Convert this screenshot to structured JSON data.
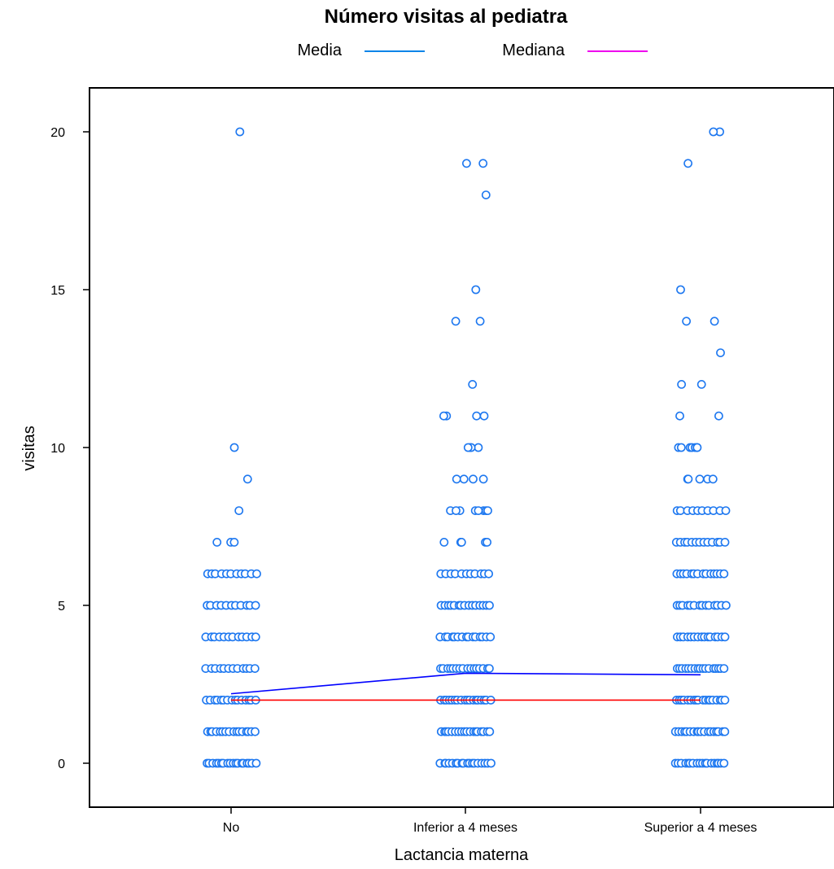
{
  "chart_data": {
    "type": "scatter",
    "title": "Número visitas al pediatra",
    "xlabel": "Lactancia materna",
    "ylabel": "visitas",
    "categories": [
      "No",
      "Inferior a 4 meses",
      "Superior a 4 meses"
    ],
    "ylim": [
      -1.3,
      21.5
    ],
    "yticks": [
      0,
      5,
      10,
      15,
      20
    ],
    "grid": false,
    "legend_position": "top",
    "legend": [
      {
        "label": "Media",
        "color": "#0a84e8"
      },
      {
        "label": "Mediana",
        "color": "#ee00ee"
      }
    ],
    "point_color": "#1e78f0",
    "series": [
      {
        "name": "Media",
        "color": "#0000ff",
        "values": [
          2.2,
          2.85,
          2.8
        ]
      },
      {
        "name": "Mediana",
        "color": "#ff0000",
        "values": [
          2,
          2,
          2
        ]
      }
    ],
    "groups": [
      {
        "category": "No",
        "points": [
          {
            "y": 0,
            "count": 18
          },
          {
            "y": 1,
            "count": 16
          },
          {
            "y": 2,
            "count": 15
          },
          {
            "y": 3,
            "count": 12
          },
          {
            "y": 4,
            "count": 12
          },
          {
            "y": 5,
            "count": 11
          },
          {
            "y": 6,
            "count": 11
          },
          {
            "y": 7,
            "count": 3
          },
          {
            "y": 8,
            "count": 1
          },
          {
            "y": 9,
            "count": 1
          },
          {
            "y": 10,
            "count": 1
          },
          {
            "y": 20,
            "count": 1
          }
        ]
      },
      {
        "category": "Inferior a 4 meses",
        "points": [
          {
            "y": 0,
            "count": 18
          },
          {
            "y": 1,
            "count": 18
          },
          {
            "y": 2,
            "count": 18
          },
          {
            "y": 3,
            "count": 16
          },
          {
            "y": 4,
            "count": 15
          },
          {
            "y": 5,
            "count": 15
          },
          {
            "y": 6,
            "count": 11
          },
          {
            "y": 7,
            "count": 6
          },
          {
            "y": 8,
            "count": 8
          },
          {
            "y": 9,
            "count": 4
          },
          {
            "y": 10,
            "count": 4
          },
          {
            "y": 11,
            "count": 4
          },
          {
            "y": 12,
            "count": 1
          },
          {
            "y": 14,
            "count": 2
          },
          {
            "y": 15,
            "count": 1
          },
          {
            "y": 18,
            "count": 1
          },
          {
            "y": 19,
            "count": 2
          }
        ]
      },
      {
        "category": "Superior a 4 meses",
        "points": [
          {
            "y": 0,
            "count": 18
          },
          {
            "y": 1,
            "count": 18
          },
          {
            "y": 2,
            "count": 18
          },
          {
            "y": 3,
            "count": 17
          },
          {
            "y": 4,
            "count": 15
          },
          {
            "y": 5,
            "count": 14
          },
          {
            "y": 6,
            "count": 14
          },
          {
            "y": 7,
            "count": 13
          },
          {
            "y": 8,
            "count": 10
          },
          {
            "y": 9,
            "count": 5
          },
          {
            "y": 10,
            "count": 7
          },
          {
            "y": 11,
            "count": 2
          },
          {
            "y": 12,
            "count": 2
          },
          {
            "y": 13,
            "count": 1
          },
          {
            "y": 14,
            "count": 2
          },
          {
            "y": 15,
            "count": 1
          },
          {
            "y": 19,
            "count": 1
          },
          {
            "y": 20,
            "count": 2
          }
        ]
      }
    ]
  }
}
